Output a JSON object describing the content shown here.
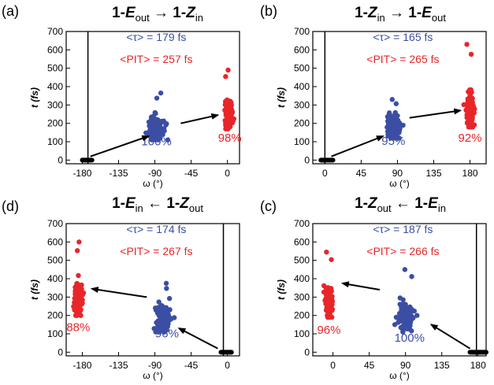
{
  "colors": {
    "blue": "#3b4ea3",
    "red": "#e8262a",
    "black": "#000000"
  },
  "chart_data": [
    {
      "type": "scatter",
      "panel_label": "(a)",
      "title": {
        "a": "1-",
        "aSym": "E",
        "aSub": "out",
        "arrow": "→",
        "b": "1-",
        "bSym": "Z",
        "bSub": "in"
      },
      "xlabel": "ω (°)",
      "ylabel": "t (fs)",
      "xlim": [
        -200,
        15
      ],
      "ylim": [
        -20,
        700
      ],
      "xticks": [
        -180,
        -135,
        -90,
        -45,
        0
      ],
      "xtick_labels": [
        "-180",
        "-135",
        "-90",
        "-45",
        "0"
      ],
      "yticks": [
        0,
        100,
        200,
        300,
        400,
        500,
        600,
        700
      ],
      "ytick_labels": [
        "0",
        "100",
        "200",
        "300",
        "400",
        "500",
        "600",
        "700"
      ],
      "vline": -173,
      "annotation_tau": "<τ> = 179 fs",
      "annotation_pit": "<PIT> = 257 fs",
      "series": [
        {
          "color": "black",
          "x": [
            -180,
            -168
          ],
          "y": [
            0,
            0
          ],
          "kind": "bar"
        },
        {
          "color": "blue",
          "label": "100%",
          "center": [
            -88,
            180
          ],
          "spreadx": 9,
          "spready": 35,
          "ymin": 110,
          "ymax": 365,
          "n": 110
        },
        {
          "color": "red",
          "label": "98%",
          "center": [
            2,
            255
          ],
          "spreadx": 4,
          "spready": 35,
          "ymin": 170,
          "ymax": 490,
          "n": 140
        }
      ],
      "arrows": [
        [
          -170,
          20,
          -98,
          130
        ],
        [
          -58,
          200,
          -12,
          245
        ]
      ],
      "label_pos": [
        [
          -88,
          80
        ],
        [
          3,
          100
        ]
      ]
    },
    {
      "type": "scatter",
      "panel_label": "(b)",
      "title": {
        "a": "1-",
        "aSym": "Z",
        "aSub": "in",
        "arrow": "→",
        "b": "1-",
        "bSym": "E",
        "bSub": "out"
      },
      "xlabel": "ω (°)",
      "ylabel": "t (fs)",
      "xlim": [
        -15,
        200
      ],
      "ylim": [
        -20,
        700
      ],
      "xticks": [
        0,
        45,
        90,
        135,
        180
      ],
      "xtick_labels": [
        "0",
        "45",
        "90",
        "135",
        "180"
      ],
      "yticks": [
        0,
        100,
        200,
        300,
        400,
        500,
        600,
        700
      ],
      "ytick_labels": [
        "0",
        "100",
        "200",
        "300",
        "400",
        "500",
        "600",
        "700"
      ],
      "vline": 0,
      "annotation_tau": "<τ> = 165 fs",
      "annotation_pit": "<PIT> = 265 fs",
      "series": [
        {
          "color": "black",
          "x": [
            -5,
            10
          ],
          "y": [
            0,
            0
          ],
          "kind": "bar"
        },
        {
          "color": "blue",
          "label": "95%",
          "center": [
            85,
            175
          ],
          "spreadx": 8,
          "spready": 35,
          "ymin": 120,
          "ymax": 330,
          "n": 110
        },
        {
          "color": "red",
          "label": "92%",
          "center": [
            180,
            270
          ],
          "spreadx": 4,
          "spready": 45,
          "ymin": 180,
          "ymax": 630,
          "n": 150
        }
      ],
      "arrows": [
        [
          8,
          20,
          72,
          130
        ],
        [
          105,
          230,
          168,
          270
        ]
      ],
      "label_pos": [
        [
          85,
          82
        ],
        [
          180,
          100
        ]
      ]
    },
    {
      "type": "scatter",
      "panel_label": "(d)",
      "title": {
        "a": "1-",
        "aSym": "E",
        "aSub": "in",
        "arrow": "←",
        "b": "1-",
        "bSym": "Z",
        "bSub": "out"
      },
      "xlabel": "ω (°)",
      "ylabel": "t (fs)",
      "xlim": [
        -200,
        15
      ],
      "ylim": [
        -20,
        700
      ],
      "xticks": [
        -180,
        -135,
        -90,
        -45,
        0
      ],
      "xtick_labels": [
        "-180",
        "-135",
        "-90",
        "-45",
        "0"
      ],
      "yticks": [
        0,
        100,
        200,
        300,
        400,
        500,
        600,
        700
      ],
      "ytick_labels": [
        "0",
        "100",
        "200",
        "300",
        "400",
        "500",
        "600",
        "700"
      ],
      "vline": -5,
      "annotation_tau": "<τ> = 174 fs",
      "annotation_pit": "<PIT> = 267 fs",
      "series": [
        {
          "color": "black",
          "x": [
            -8,
            5
          ],
          "y": [
            0,
            0
          ],
          "kind": "bar"
        },
        {
          "color": "blue",
          "label": "96%",
          "center": [
            -80,
            190
          ],
          "spreadx": 8,
          "spready": 40,
          "ymin": 110,
          "ymax": 375,
          "n": 110
        },
        {
          "color": "red",
          "label": "88%",
          "center": [
            -185,
            285
          ],
          "spreadx": 4,
          "spready": 45,
          "ymin": 200,
          "ymax": 600,
          "n": 150
        }
      ],
      "arrows": [
        [
          -12,
          20,
          -60,
          130
        ],
        [
          -100,
          300,
          -168,
          345
        ]
      ],
      "label_pos": [
        [
          -75,
          80
        ],
        [
          -185,
          115
        ]
      ]
    },
    {
      "type": "scatter",
      "panel_label": "(c)",
      "title": {
        "a": "1-",
        "aSym": "Z",
        "aSub": "out",
        "arrow": "←",
        "b": "1-",
        "bSym": "E",
        "bSub": "in"
      },
      "xlabel": "ω (°)",
      "ylabel": "t (fs)",
      "xlim": [
        -25,
        190
      ],
      "ylim": [
        -20,
        700
      ],
      "xticks": [
        0,
        45,
        90,
        135,
        180
      ],
      "xtick_labels": [
        "0",
        "45",
        "90",
        "135",
        "180"
      ],
      "yticks": [
        0,
        100,
        200,
        300,
        400,
        500,
        600,
        700
      ],
      "ytick_labels": [
        "0",
        "100",
        "200",
        "300",
        "400",
        "500",
        "600",
        "700"
      ],
      "vline": 178,
      "annotation_tau": "<τ> = 187 fs",
      "annotation_pit": "<PIT> = 266 fs",
      "series": [
        {
          "color": "black",
          "x": [
            170,
            190
          ],
          "y": [
            0,
            0
          ],
          "kind": "bar"
        },
        {
          "color": "blue",
          "label": "100%",
          "center": [
            90,
            195
          ],
          "spreadx": 9,
          "spready": 40,
          "ymin": 110,
          "ymax": 450,
          "n": 110
        },
        {
          "color": "red",
          "label": "96%",
          "center": [
            -5,
            270
          ],
          "spreadx": 4,
          "spready": 40,
          "ymin": 190,
          "ymax": 545,
          "n": 140
        }
      ],
      "arrows": [
        [
          170,
          20,
          122,
          150
        ],
        [
          58,
          340,
          12,
          375
        ]
      ],
      "label_pos": [
        [
          95,
          58
        ],
        [
          -5,
          100
        ]
      ]
    }
  ]
}
